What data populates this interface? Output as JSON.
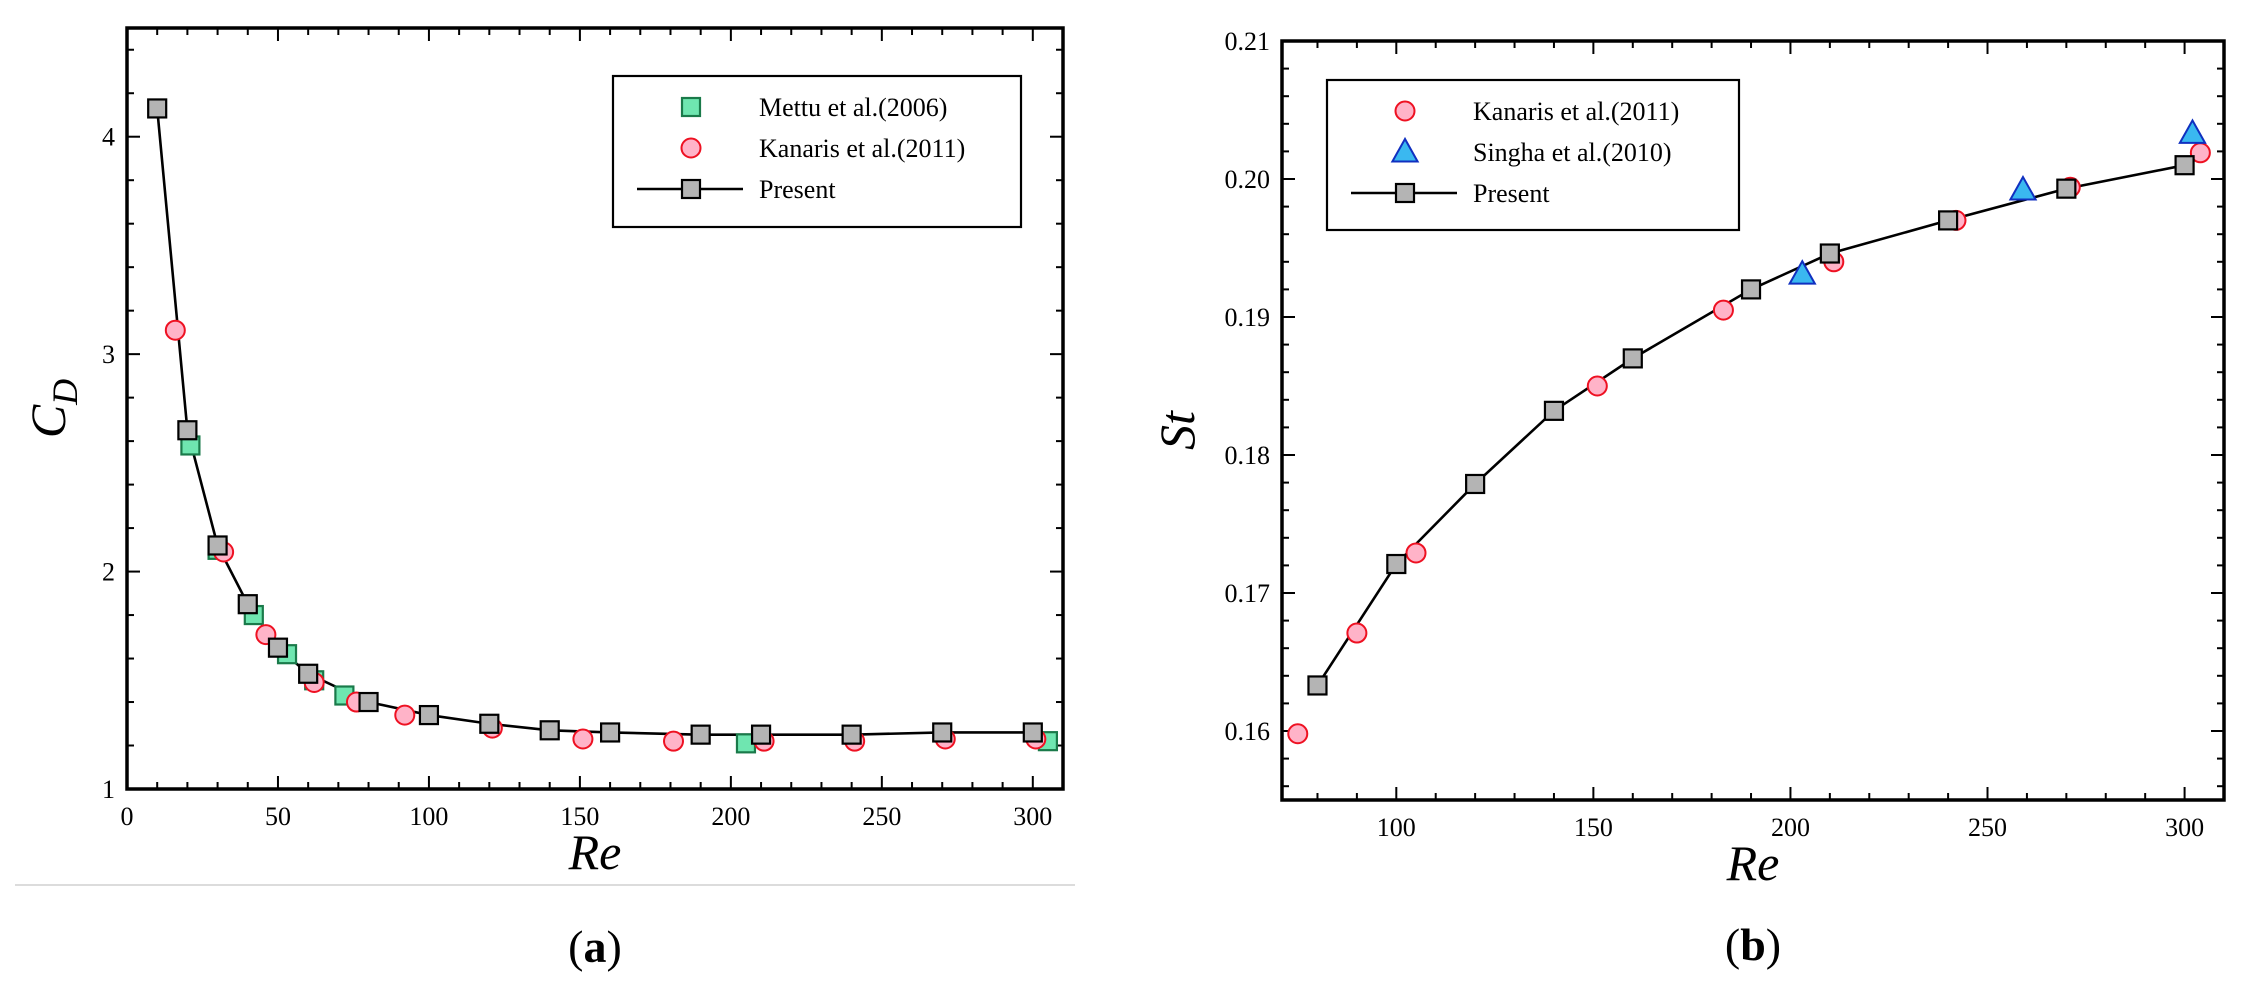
{
  "chart_data": [
    {
      "type": "line",
      "caption": "(a)",
      "caption_parts": {
        "open": "(",
        "letter": "a",
        "close": ")"
      },
      "xlabel": "Re",
      "ylabel_main": "C",
      "ylabel_sub": "D",
      "xlim": [
        0,
        310
      ],
      "ylim": [
        1,
        4.5
      ],
      "xticks": [
        0,
        50,
        100,
        150,
        200,
        250,
        300
      ],
      "yticks": [
        1,
        2,
        3,
        4
      ],
      "xtick_labels": [
        "0",
        "50",
        "100",
        "150",
        "200",
        "250",
        "300"
      ],
      "ytick_labels": [
        "1",
        "2",
        "3",
        "4"
      ],
      "legend_position": "top-right",
      "series": [
        {
          "name": "Mettu et al.(2006)",
          "marker": "square",
          "color": "#6fe6b0",
          "edge": "#1a7a4a",
          "line": false,
          "x": [
            21,
            30,
            42,
            53,
            62,
            72,
            205,
            305
          ],
          "y": [
            2.58,
            2.1,
            1.8,
            1.62,
            1.5,
            1.43,
            1.21,
            1.22
          ]
        },
        {
          "name": "Kanaris et al.(2011)",
          "marker": "circle",
          "color": "#ffb3c8",
          "edge": "#ee1122",
          "line": false,
          "x": [
            16,
            32,
            46,
            62,
            76,
            92,
            121,
            151,
            181,
            211,
            241,
            271,
            301
          ],
          "y": [
            3.11,
            2.09,
            1.71,
            1.49,
            1.4,
            1.34,
            1.28,
            1.23,
            1.22,
            1.22,
            1.22,
            1.23,
            1.23
          ]
        },
        {
          "name": "Present",
          "marker": "square",
          "color": "#b4b4b4",
          "edge": "#000000",
          "line": true,
          "x": [
            10,
            20,
            30,
            40,
            50,
            60,
            80,
            100,
            120,
            140,
            160,
            190,
            210,
            240,
            270,
            300
          ],
          "y": [
            4.13,
            2.65,
            2.12,
            1.85,
            1.65,
            1.53,
            1.4,
            1.34,
            1.3,
            1.27,
            1.26,
            1.25,
            1.25,
            1.25,
            1.26,
            1.26
          ]
        }
      ]
    },
    {
      "type": "line",
      "caption": "(b)",
      "caption_parts": {
        "open": "(",
        "letter": "b",
        "close": ")"
      },
      "xlabel": "Re",
      "ylabel": "St",
      "xlim": [
        71,
        310
      ],
      "ylim": [
        0.155,
        0.21
      ],
      "xticks": [
        100,
        150,
        200,
        250,
        300
      ],
      "yticks": [
        0.16,
        0.17,
        0.18,
        0.19,
        0.2,
        0.21
      ],
      "xtick_labels": [
        "100",
        "150",
        "200",
        "250",
        "300"
      ],
      "ytick_labels": [
        "0.16",
        "0.17",
        "0.18",
        "0.19",
        "0.20",
        "0.21"
      ],
      "legend_position": "top-left",
      "series": [
        {
          "name": "Kanaris et al.(2011)",
          "marker": "circle",
          "color": "#ffb3c8",
          "edge": "#ee1122",
          "line": false,
          "x": [
            75,
            90,
            105,
            151,
            183,
            211,
            242,
            271,
            304
          ],
          "y": [
            0.1598,
            0.1671,
            0.1729,
            0.185,
            0.1905,
            0.194,
            0.197,
            0.1994,
            0.2019
          ]
        },
        {
          "name": "Singha et al.(2010)",
          "marker": "triangle",
          "color": "#3ab8f0",
          "edge": "#1030c0",
          "line": false,
          "x": [
            203,
            259,
            302
          ],
          "y": [
            0.1931,
            0.1992,
            0.2033
          ]
        },
        {
          "name": "Present",
          "marker": "square",
          "color": "#b4b4b4",
          "edge": "#000000",
          "line": true,
          "x": [
            80,
            100,
            120,
            140,
            160,
            190,
            210,
            240,
            270,
            300
          ],
          "y": [
            0.1633,
            0.1721,
            0.1779,
            0.1832,
            0.187,
            0.192,
            0.1946,
            0.197,
            0.1993,
            0.201
          ]
        }
      ]
    }
  ]
}
